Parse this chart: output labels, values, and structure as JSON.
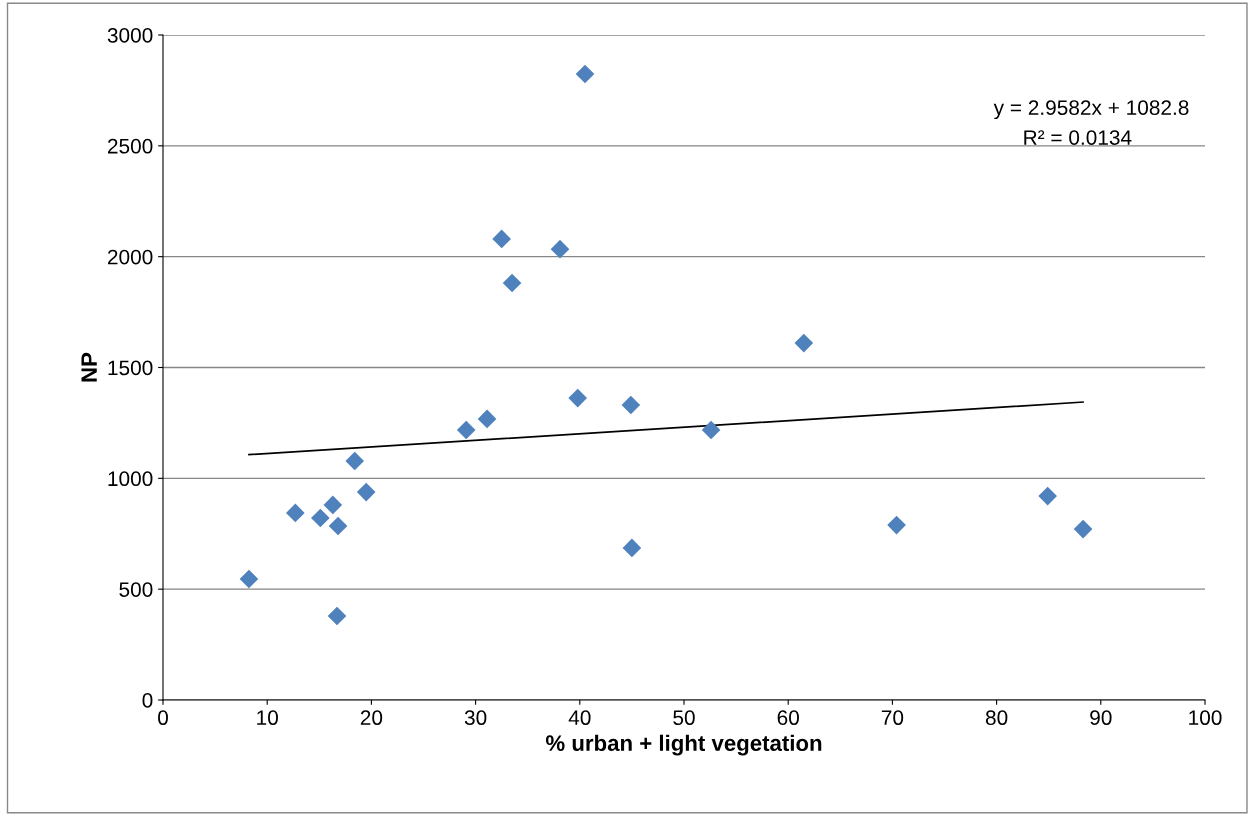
{
  "chart_data": {
    "type": "scatter",
    "xlabel": "% urban + light vegetation",
    "ylabel": "NP",
    "xlim": [
      0,
      100
    ],
    "xticks": [
      0,
      10,
      20,
      30,
      40,
      50,
      60,
      70,
      80,
      90,
      100
    ],
    "ylim": [
      0,
      3000
    ],
    "yticks": [
      0,
      500,
      1000,
      1500,
      2000,
      2500,
      3000
    ],
    "grid": "y",
    "annotations": [
      "y = 2.9582x + 1082.8",
      "R² = 0.0134"
    ],
    "series": [
      {
        "marker": "diamond",
        "color": "#4f81bd",
        "x": [
          8.25,
          12.7,
          15.1,
          16.3,
          16.8,
          16.7,
          18.4,
          19.5,
          29.1,
          31.1,
          32.5,
          33.5,
          38.1,
          40.5,
          39.8,
          44.9,
          45.0,
          52.6,
          61.5,
          70.4,
          84.9,
          88.3
        ],
        "values": [
          546,
          844,
          821,
          880,
          785,
          379,
          1078,
          938,
          1218,
          1268,
          2080,
          1881,
          2034,
          2824,
          1362,
          1331,
          686,
          1218,
          1610,
          789,
          920,
          771
        ]
      },
      {
        "type": "line",
        "marker": "none",
        "color": "#000000",
        "x": [
          8.25,
          88.3
        ],
        "values": [
          1107,
          1344
        ]
      }
    ]
  }
}
